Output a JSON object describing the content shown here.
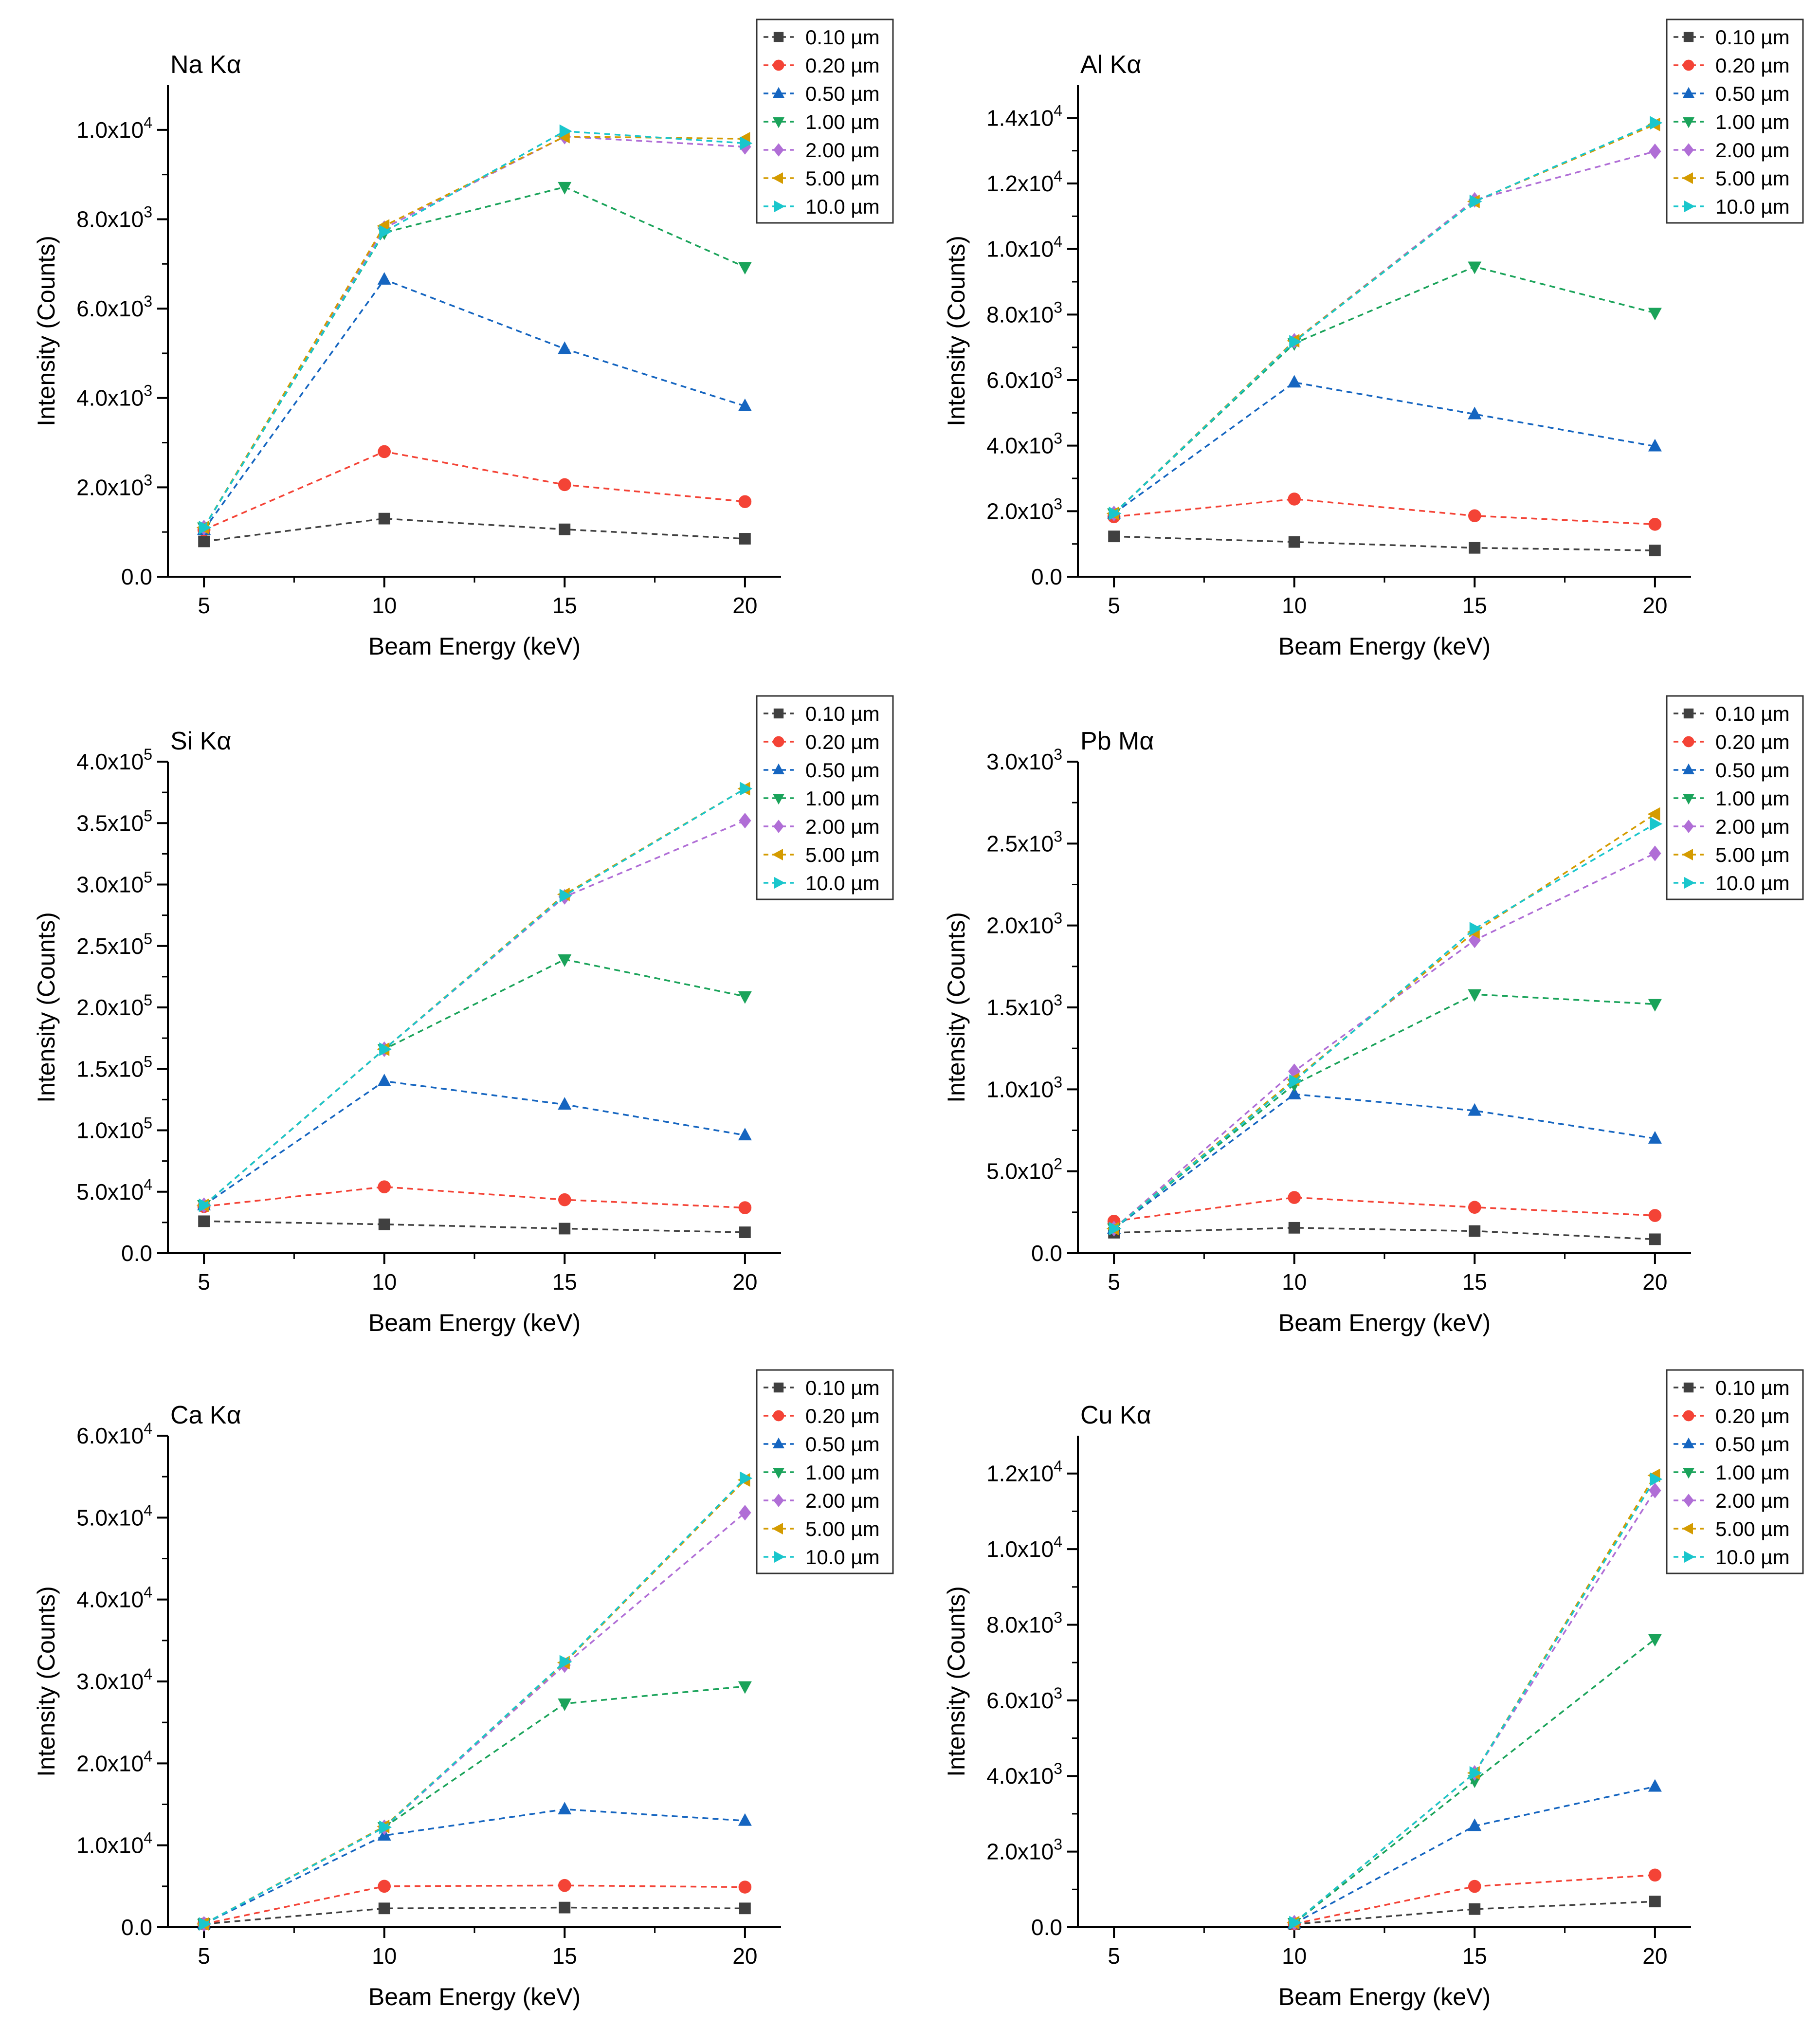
{
  "legend_labels": [
    "0.10 µm",
    "0.20 µm",
    "0.50 µm",
    "1.00 µm",
    "2.00 µm",
    "5.00 µm",
    "10.0 µm"
  ],
  "series_colors": [
    "#404040",
    "#f44336",
    "#1565c0",
    "#1aa35a",
    "#b06ed6",
    "#d49b00",
    "#19c6cc"
  ],
  "series_markers": [
    "square",
    "circle",
    "triangle-up",
    "triangle-down",
    "diamond",
    "triangle-left",
    "triangle-right"
  ],
  "chart_data": [
    {
      "type": "line",
      "title": "Na Kα",
      "xlabel": "Beam Energy (keV)",
      "ylabel": "Intensity (Counts)",
      "xlim": [
        4,
        21
      ],
      "ylim": [
        0,
        11000
      ],
      "x_ticks": [
        5,
        10,
        15,
        20
      ],
      "x_tick_labels": [
        "5",
        "10",
        "15",
        "20"
      ],
      "y_ticks": [
        0,
        2000,
        4000,
        6000,
        8000,
        10000
      ],
      "y_tick_labels": [
        {
          "base": "0.0",
          "exp": ""
        },
        {
          "base": "2.0x10",
          "exp": "3"
        },
        {
          "base": "4.0x10",
          "exp": "3"
        },
        {
          "base": "6.0x10",
          "exp": "3"
        },
        {
          "base": "8.0x10",
          "exp": "3"
        },
        {
          "base": "1.0x10",
          "exp": "4"
        }
      ],
      "legend": "top-right",
      "x": [
        5,
        10,
        15,
        20
      ],
      "series": [
        {
          "name": "0.10 µm",
          "values": [
            790,
            1300,
            1060,
            850
          ]
        },
        {
          "name": "0.20 µm",
          "values": [
            1050,
            2800,
            2060,
            1680
          ]
        },
        {
          "name": "0.50 µm",
          "values": [
            1050,
            6650,
            5100,
            3820
          ]
        },
        {
          "name": "1.00 µm",
          "values": [
            1100,
            7700,
            8720,
            6930
          ]
        },
        {
          "name": "2.00 µm",
          "values": [
            1100,
            7800,
            9850,
            9620
          ]
        },
        {
          "name": "5.00 µm",
          "values": [
            1100,
            7850,
            9850,
            9800
          ]
        },
        {
          "name": "10.0 µm",
          "values": [
            1100,
            7720,
            9970,
            9700
          ]
        }
      ]
    },
    {
      "type": "line",
      "title": "Al Kα",
      "xlabel": "Beam Energy (keV)",
      "ylabel": "Intensity (Counts)",
      "xlim": [
        4,
        21
      ],
      "ylim": [
        0,
        15000
      ],
      "x_ticks": [
        5,
        10,
        15,
        20
      ],
      "x_tick_labels": [
        "5",
        "10",
        "15",
        "20"
      ],
      "y_ticks": [
        0,
        2000,
        4000,
        6000,
        8000,
        10000,
        12000,
        14000
      ],
      "y_tick_labels": [
        {
          "base": "0.0",
          "exp": ""
        },
        {
          "base": "2.0x10",
          "exp": "3"
        },
        {
          "base": "4.0x10",
          "exp": "3"
        },
        {
          "base": "6.0x10",
          "exp": "3"
        },
        {
          "base": "8.0x10",
          "exp": "3"
        },
        {
          "base": "1.0x10",
          "exp": "4"
        },
        {
          "base": "1.2x10",
          "exp": "4"
        },
        {
          "base": "1.4x10",
          "exp": "4"
        }
      ],
      "legend": "top-right",
      "x": [
        5,
        10,
        15,
        20
      ],
      "series": [
        {
          "name": "0.10 µm",
          "values": [
            1230,
            1060,
            880,
            800
          ]
        },
        {
          "name": "0.20 µm",
          "values": [
            1830,
            2370,
            1860,
            1600
          ]
        },
        {
          "name": "0.50 µm",
          "values": [
            1930,
            5930,
            4960,
            3980
          ]
        },
        {
          "name": "1.00 µm",
          "values": [
            1930,
            7120,
            9460,
            8050
          ]
        },
        {
          "name": "2.00 µm",
          "values": [
            1930,
            7200,
            11500,
            12980
          ]
        },
        {
          "name": "5.00 µm",
          "values": [
            1930,
            7200,
            11450,
            13800
          ]
        },
        {
          "name": "10.0 µm",
          "values": [
            1930,
            7170,
            11450,
            13850
          ]
        }
      ]
    },
    {
      "type": "line",
      "title": "Si Kα",
      "xlabel": "Beam Energy (keV)",
      "ylabel": "Intensity (Counts)",
      "xlim": [
        4,
        21
      ],
      "ylim": [
        0,
        400000
      ],
      "x_ticks": [
        5,
        10,
        15,
        20
      ],
      "x_tick_labels": [
        "5",
        "10",
        "15",
        "20"
      ],
      "y_ticks": [
        0,
        50000,
        100000,
        150000,
        200000,
        250000,
        300000,
        350000,
        400000
      ],
      "y_tick_labels": [
        {
          "base": "0.0",
          "exp": ""
        },
        {
          "base": "5.0x10",
          "exp": "4"
        },
        {
          "base": "1.0x10",
          "exp": "5"
        },
        {
          "base": "1.5x10",
          "exp": "5"
        },
        {
          "base": "2.0x10",
          "exp": "5"
        },
        {
          "base": "2.5x10",
          "exp": "5"
        },
        {
          "base": "3.0x10",
          "exp": "5"
        },
        {
          "base": "3.5x10",
          "exp": "5"
        },
        {
          "base": "4.0x10",
          "exp": "5"
        }
      ],
      "legend": "top-right",
      "x": [
        5,
        10,
        15,
        20
      ],
      "series": [
        {
          "name": "0.10 µm",
          "values": [
            26000,
            23500,
            20000,
            17000
          ]
        },
        {
          "name": "0.20 µm",
          "values": [
            38000,
            54000,
            43500,
            37000
          ]
        },
        {
          "name": "0.50 µm",
          "values": [
            39000,
            140000,
            121000,
            96000
          ]
        },
        {
          "name": "1.00 µm",
          "values": [
            39000,
            166000,
            239000,
            209000
          ]
        },
        {
          "name": "2.00 µm",
          "values": [
            39000,
            166000,
            290000,
            352000
          ]
        },
        {
          "name": "5.00 µm",
          "values": [
            39000,
            166000,
            292000,
            378000
          ]
        },
        {
          "name": "10.0 µm",
          "values": [
            39000,
            166000,
            291000,
            378000
          ]
        }
      ]
    },
    {
      "type": "line",
      "title": "Pb Mα",
      "xlabel": "Beam Energy (keV)",
      "ylabel": "Intensity (Counts)",
      "xlim": [
        4,
        21
      ],
      "ylim": [
        0,
        3000
      ],
      "x_ticks": [
        5,
        10,
        15,
        20
      ],
      "x_tick_labels": [
        "5",
        "10",
        "15",
        "20"
      ],
      "y_ticks": [
        0,
        500,
        1000,
        1500,
        2000,
        2500,
        3000
      ],
      "y_tick_labels": [
        {
          "base": "0.0",
          "exp": ""
        },
        {
          "base": "5.0x10",
          "exp": "2"
        },
        {
          "base": "1.0x10",
          "exp": "3"
        },
        {
          "base": "1.5x10",
          "exp": "3"
        },
        {
          "base": "2.0x10",
          "exp": "3"
        },
        {
          "base": "2.5x10",
          "exp": "3"
        },
        {
          "base": "3.0x10",
          "exp": "3"
        }
      ],
      "legend": "top-right",
      "x": [
        5,
        10,
        15,
        20
      ],
      "series": [
        {
          "name": "0.10 µm",
          "values": [
            125,
            155,
            135,
            85
          ]
        },
        {
          "name": "0.20 µm",
          "values": [
            195,
            340,
            280,
            230
          ]
        },
        {
          "name": "0.50 µm",
          "values": [
            150,
            970,
            870,
            700
          ]
        },
        {
          "name": "1.00 µm",
          "values": [
            150,
            1030,
            1580,
            1520
          ]
        },
        {
          "name": "2.00 µm",
          "values": [
            150,
            1110,
            1910,
            2440
          ]
        },
        {
          "name": "5.00 µm",
          "values": [
            150,
            1060,
            1960,
            2680
          ]
        },
        {
          "name": "10.0 µm",
          "values": [
            150,
            1050,
            1980,
            2620
          ]
        }
      ]
    },
    {
      "type": "line",
      "title": "Ca Kα",
      "xlabel": "Beam Energy (keV)",
      "ylabel": "Intensity (Counts)",
      "xlim": [
        4,
        21
      ],
      "ylim": [
        0,
        60000
      ],
      "x_ticks": [
        5,
        10,
        15,
        20
      ],
      "x_tick_labels": [
        "5",
        "10",
        "15",
        "20"
      ],
      "y_ticks": [
        0,
        10000,
        20000,
        30000,
        40000,
        50000,
        60000
      ],
      "y_tick_labels": [
        {
          "base": "0.0",
          "exp": ""
        },
        {
          "base": "1.0x10",
          "exp": "4"
        },
        {
          "base": "2.0x10",
          "exp": "4"
        },
        {
          "base": "3.0x10",
          "exp": "4"
        },
        {
          "base": "4.0x10",
          "exp": "4"
        },
        {
          "base": "5.0x10",
          "exp": "4"
        },
        {
          "base": "6.0x10",
          "exp": "4"
        }
      ],
      "legend": "top-right",
      "x": [
        5,
        10,
        15,
        20
      ],
      "series": [
        {
          "name": "0.10 µm",
          "values": [
            400,
            2300,
            2400,
            2300
          ]
        },
        {
          "name": "0.20 µm",
          "values": [
            400,
            5000,
            5100,
            4900
          ]
        },
        {
          "name": "0.50 µm",
          "values": [
            400,
            11200,
            14400,
            13000
          ]
        },
        {
          "name": "1.00 µm",
          "values": [
            400,
            12200,
            27300,
            29400
          ]
        },
        {
          "name": "2.00 µm",
          "values": [
            400,
            12200,
            32000,
            50600
          ]
        },
        {
          "name": "5.00 µm",
          "values": [
            400,
            12300,
            32300,
            54600
          ]
        },
        {
          "name": "10.0 µm",
          "values": [
            400,
            12200,
            32400,
            54800
          ]
        }
      ]
    },
    {
      "type": "line",
      "title": "Cu Kα",
      "xlabel": "Beam Energy (keV)",
      "ylabel": "Intensity (Counts)",
      "xlim": [
        4,
        21
      ],
      "ylim": [
        0,
        13000
      ],
      "x_ticks": [
        5,
        10,
        15,
        20
      ],
      "x_tick_labels": [
        "5",
        "10",
        "15",
        "20"
      ],
      "y_ticks": [
        0,
        2000,
        4000,
        6000,
        8000,
        10000,
        12000
      ],
      "y_tick_labels": [
        {
          "base": "0.0",
          "exp": ""
        },
        {
          "base": "2.0x10",
          "exp": "3"
        },
        {
          "base": "4.0x10",
          "exp": "3"
        },
        {
          "base": "6.0x10",
          "exp": "3"
        },
        {
          "base": "8.0x10",
          "exp": "3"
        },
        {
          "base": "1.0x10",
          "exp": "4"
        },
        {
          "base": "1.2x10",
          "exp": "4"
        }
      ],
      "legend": "top-right",
      "x": [
        10,
        15,
        20
      ],
      "series": [
        {
          "name": "0.10 µm",
          "values": [
            80,
            480,
            680
          ]
        },
        {
          "name": "0.20 µm",
          "values": [
            90,
            1080,
            1380
          ]
        },
        {
          "name": "0.50 µm",
          "values": [
            100,
            2680,
            3720
          ]
        },
        {
          "name": "1.00 µm",
          "values": [
            110,
            3880,
            7620
          ]
        },
        {
          "name": "2.00 µm",
          "values": [
            120,
            4080,
            11550
          ]
        },
        {
          "name": "5.00 µm",
          "values": [
            120,
            4080,
            11950
          ]
        },
        {
          "name": "10.0 µm",
          "values": [
            120,
            4080,
            11850
          ]
        }
      ]
    }
  ]
}
